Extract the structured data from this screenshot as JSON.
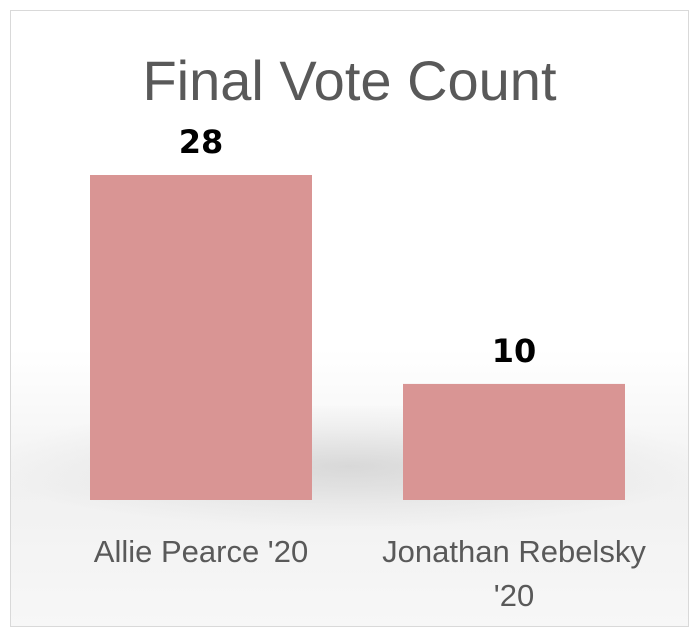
{
  "chart_data": {
    "type": "bar",
    "title": "Final Vote Count",
    "categories": [
      [
        "Allie Pearce '20"
      ],
      [
        "Jonathan Rebelsky",
        "'20"
      ]
    ],
    "values": [
      28,
      10
    ],
    "data_labels": [
      "28",
      "10"
    ],
    "xlabel": "",
    "ylabel": "",
    "ylim": [
      0,
      28
    ],
    "grid": false,
    "legend": "none",
    "colors": {
      "bar": "#d99594",
      "title": "#595959",
      "label": "#000000"
    }
  }
}
